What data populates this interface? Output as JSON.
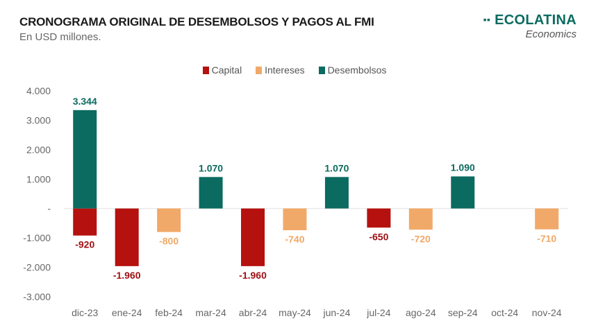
{
  "header": {
    "title": "CRONOGRAMA ORIGINAL DE DESEMBOLSOS Y PAGOS AL FMI",
    "subtitle": "En USD millones."
  },
  "logo": {
    "main": "ECOLATINA",
    "sub": "Economics"
  },
  "chart_data": {
    "type": "bar",
    "stacked": true,
    "title": "CRONOGRAMA ORIGINAL DE DESEMBOLSOS Y PAGOS AL FMI",
    "subtitle": "En USD millones.",
    "categories": [
      "dic-23",
      "ene-24",
      "feb-24",
      "mar-24",
      "abr-24",
      "may-24",
      "jun-24",
      "jul-24",
      "ago-24",
      "sep-24",
      "oct-24",
      "nov-24"
    ],
    "series": [
      {
        "name": "Capital",
        "color": "#b5110f",
        "label_color": "#9e0f12",
        "values": [
          -920,
          -1960,
          null,
          null,
          -1960,
          null,
          null,
          -650,
          null,
          null,
          null,
          null
        ]
      },
      {
        "name": "Intereses",
        "color": "#f1a969",
        "label_color": "#f0a868",
        "values": [
          null,
          null,
          -800,
          null,
          null,
          -740,
          null,
          null,
          -720,
          null,
          null,
          -710
        ]
      },
      {
        "name": "Desembolsos",
        "color": "#0b6b60",
        "label_color": "#0b6b60",
        "values": [
          3344,
          null,
          null,
          1070,
          null,
          null,
          1070,
          null,
          null,
          1090,
          null,
          null
        ]
      }
    ],
    "ylim": [
      -3000,
      4000
    ],
    "yticks": [
      4000,
      3000,
      2000,
      1000,
      0,
      -1000,
      -2000,
      -3000
    ],
    "ytick_labels": [
      "4.000",
      "3.000",
      "2.000",
      "1.000",
      "-",
      "-1.000",
      "-2.000",
      "-3.000"
    ],
    "legend": "top-center",
    "grid": false
  }
}
